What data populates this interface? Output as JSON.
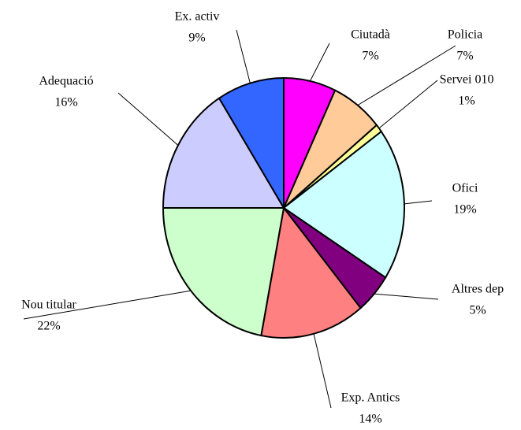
{
  "chart_data": {
    "type": "pie",
    "categories": [
      "Ciutadà",
      "Policia",
      "Servei 010",
      "Ofici",
      "Altres dep",
      "Exp. Antics",
      "Nou titular",
      "Adequació",
      "Ex. activ"
    ],
    "values": [
      7,
      7,
      1,
      19,
      5,
      14,
      22,
      16,
      9
    ],
    "value_labels": [
      "7%",
      "7%",
      "1%",
      "19%",
      "5%",
      "14%",
      "22%",
      "16%",
      "9%"
    ],
    "colors": [
      "#ff00ff",
      "#ffcc99",
      "#ffff99",
      "#ccffff",
      "#800080",
      "#ff8080",
      "#ccffcc",
      "#ccccff",
      "#3366ff"
    ]
  }
}
